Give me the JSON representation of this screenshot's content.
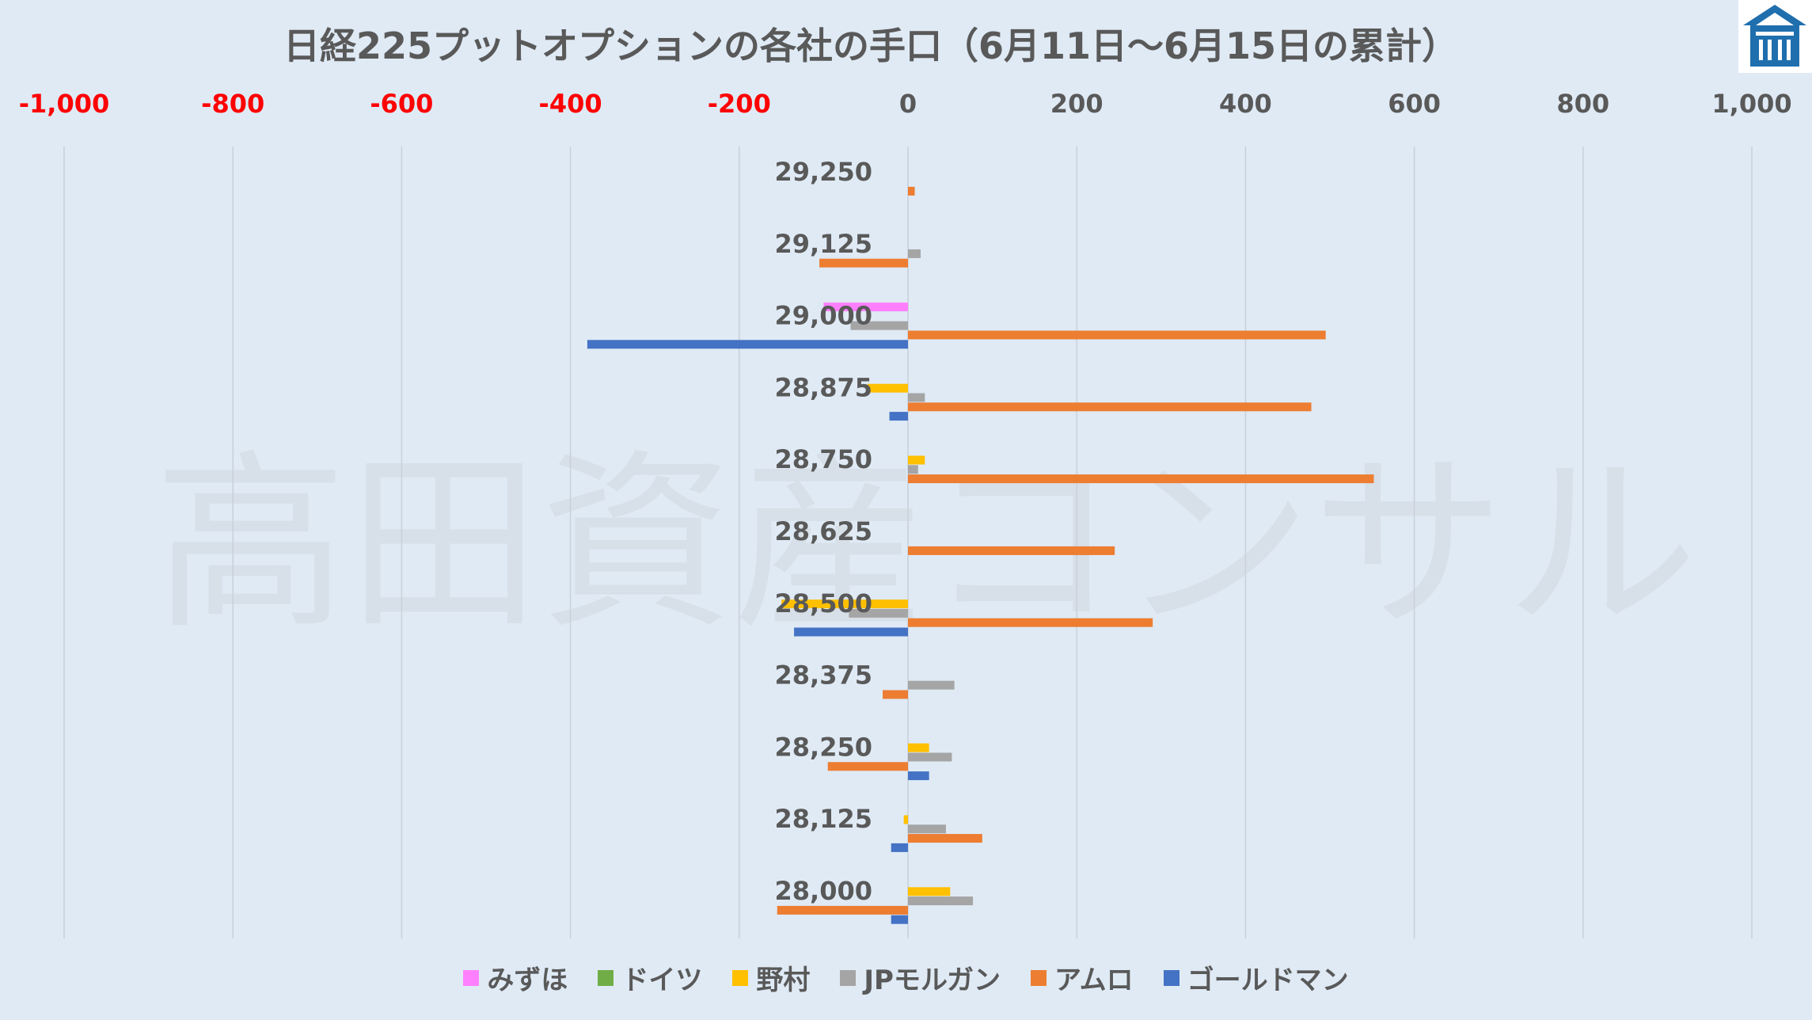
{
  "title": "日経225プットオプションの各社の手口（6月11日～6月15日の累計）",
  "watermark": "高田資産コンサル",
  "logo": {
    "icon": "takada-logo-icon",
    "color": "#1f6fae"
  },
  "chart_data": {
    "type": "bar",
    "orientation": "horizontal",
    "xlim": [
      -1000,
      1000
    ],
    "x_ticks": [
      -1000,
      -800,
      -600,
      -400,
      -200,
      0,
      200,
      400,
      600,
      800,
      1000
    ],
    "x_tick_labels": [
      "-1,000",
      "-800",
      "-600",
      "-400",
      "-200",
      "0",
      "200",
      "400",
      "600",
      "800",
      "1,000"
    ],
    "negative_tick_color": "#ff0000",
    "positive_tick_color": "#595959",
    "grid": true,
    "legend_position": "bottom",
    "categories": [
      "29,250",
      "29,125",
      "29,000",
      "28,875",
      "28,750",
      "28,625",
      "28,500",
      "28,375",
      "28,250",
      "28,125",
      "28,000"
    ],
    "series": [
      {
        "name": "みずほ",
        "color": "#ff80ff",
        "values": [
          0,
          0,
          -100,
          0,
          0,
          0,
          0,
          0,
          0,
          0,
          0
        ]
      },
      {
        "name": "ドイツ",
        "color": "#70ad47",
        "values": [
          0,
          0,
          0,
          0,
          0,
          0,
          0,
          0,
          0,
          0,
          0
        ]
      },
      {
        "name": "野村",
        "color": "#ffc000",
        "values": [
          0,
          0,
          0,
          -48,
          20,
          0,
          -150,
          0,
          25,
          -5,
          50
        ]
      },
      {
        "name": "JPモルガン",
        "color": "#a5a5a5",
        "values": [
          0,
          15,
          -68,
          20,
          12,
          0,
          -70,
          55,
          52,
          45,
          77
        ]
      },
      {
        "name": "アムロ",
        "color": "#ed7d31",
        "values": [
          8,
          -105,
          495,
          478,
          552,
          245,
          290,
          -30,
          -95,
          88,
          -155
        ]
      },
      {
        "name": "ゴールドマン",
        "color": "#4472c4",
        "values": [
          0,
          0,
          -380,
          -22,
          0,
          0,
          -135,
          0,
          25,
          -20,
          -20
        ]
      }
    ]
  }
}
